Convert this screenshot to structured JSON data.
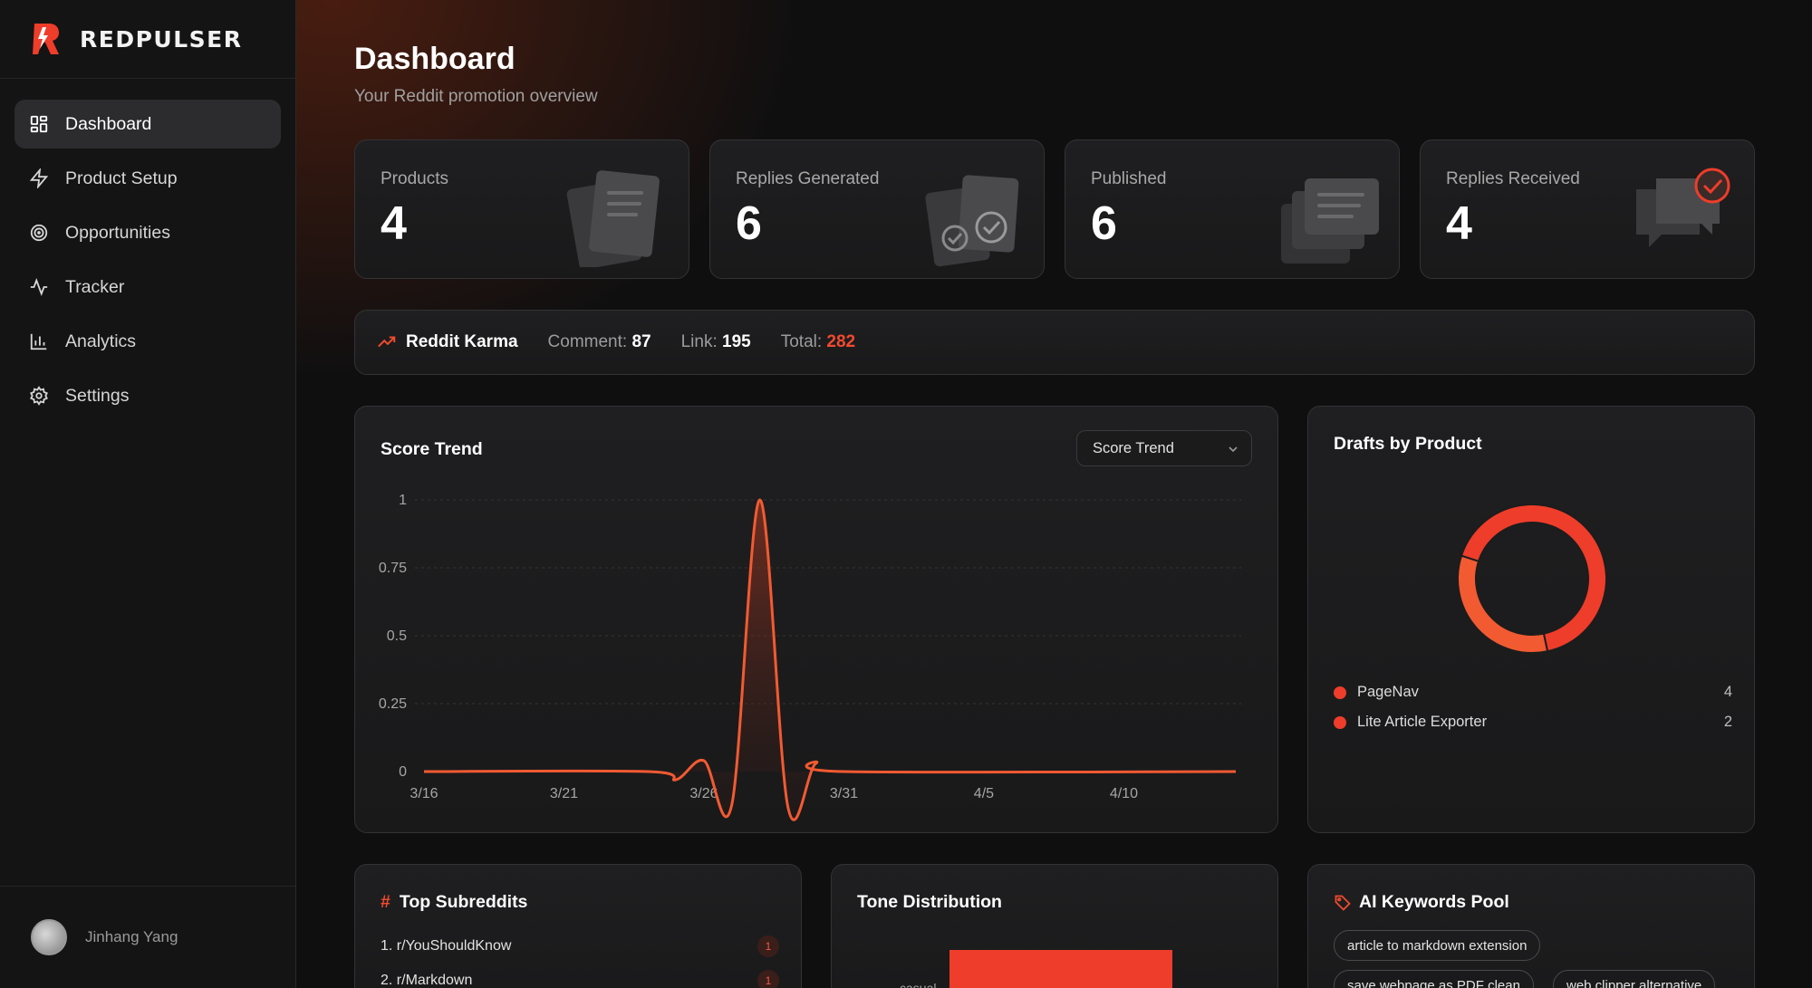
{
  "brand": {
    "name": "REDPULSER"
  },
  "sidebar": {
    "items": [
      {
        "label": "Dashboard",
        "icon": "grid-icon",
        "active": true
      },
      {
        "label": "Product Setup",
        "icon": "zap-icon",
        "active": false
      },
      {
        "label": "Opportunities",
        "icon": "target-icon",
        "active": false
      },
      {
        "label": "Tracker",
        "icon": "activity-icon",
        "active": false
      },
      {
        "label": "Analytics",
        "icon": "bar-chart-icon",
        "active": false
      },
      {
        "label": "Settings",
        "icon": "gear-icon",
        "active": false
      }
    ],
    "user": {
      "name": "Jinhang Yang"
    }
  },
  "header": {
    "title": "Dashboard",
    "subtitle": "Your Reddit promotion overview"
  },
  "stats": [
    {
      "label": "Products",
      "value": "4",
      "icon": "documents-icon"
    },
    {
      "label": "Replies Generated",
      "value": "6",
      "icon": "checked-documents-icon"
    },
    {
      "label": "Published",
      "value": "6",
      "icon": "stacked-cards-icon"
    },
    {
      "label": "Replies Received",
      "value": "4",
      "icon": "chat-check-icon"
    }
  ],
  "karma": {
    "title": "Reddit Karma",
    "comment_label": "Comment:",
    "comment_value": "87",
    "link_label": "Link:",
    "link_value": "195",
    "total_label": "Total:",
    "total_value": "282",
    "icon": "trending-up-icon"
  },
  "score_trend": {
    "title": "Score Trend",
    "dropdown_value": "Score Trend"
  },
  "drafts": {
    "title": "Drafts by Product",
    "items": [
      {
        "name": "PageNav",
        "value": "4"
      },
      {
        "name": "Lite Article Exporter",
        "value": "2"
      }
    ]
  },
  "top_subreddits": {
    "title": "Top Subreddits",
    "items": [
      {
        "name": "1. r/YouShouldKnow",
        "count": "1"
      },
      {
        "name": "2. r/Markdown",
        "count": "1"
      }
    ]
  },
  "tone": {
    "title": "Tone Distribution",
    "first_label": "casual"
  },
  "keywords": {
    "title": "AI Keywords Pool",
    "chips": [
      "article to markdown extension",
      "save webpage as PDF clean",
      "web clipper alternative"
    ]
  },
  "colors": {
    "accent": "#f04a2e",
    "donut_primary": "#ee3d2a",
    "donut_secondary": "#f25a32"
  },
  "chart_data": [
    {
      "type": "line",
      "title": "Score Trend",
      "x": [
        "3/16",
        "3/21",
        "3/26",
        "3/31",
        "4/5",
        "4/10"
      ],
      "ylim": [
        0,
        1
      ],
      "y_ticks": [
        "0",
        "0.25",
        "0.5",
        "0.75",
        "1"
      ],
      "series": [
        {
          "points": [
            [
              0,
              0
            ],
            [
              8,
              0
            ],
            [
              9,
              -0.03
            ],
            [
              10,
              0.04
            ],
            [
              11,
              -0.12
            ],
            [
              12,
              1
            ],
            [
              13,
              -0.13
            ],
            [
              14,
              0.03
            ],
            [
              15,
              0
            ],
            [
              29,
              0
            ]
          ]
        }
      ],
      "grid": true
    },
    {
      "type": "pie",
      "title": "Drafts by Product",
      "categories": [
        "PageNav",
        "Lite Article Exporter"
      ],
      "values": [
        4,
        2
      ]
    }
  ]
}
